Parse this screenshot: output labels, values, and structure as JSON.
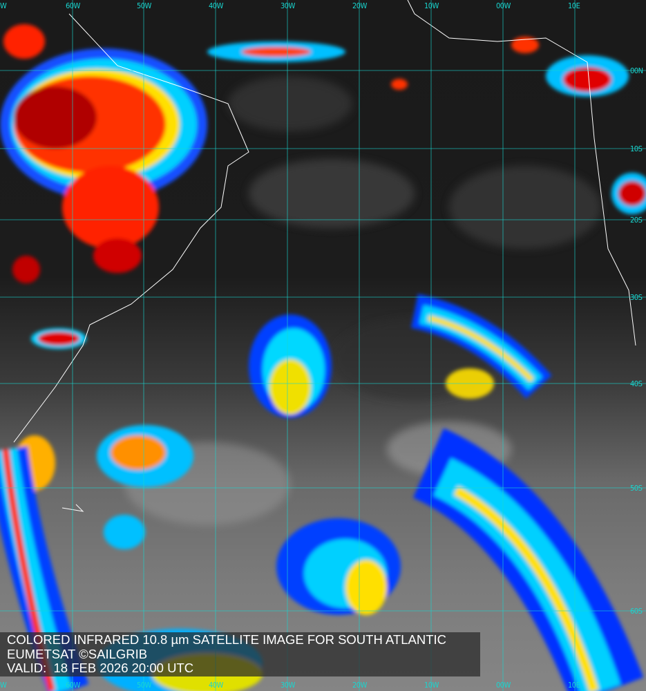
{
  "caption": {
    "title": "COLORED INFRARED 10.8 µm SATELLITE IMAGE FOR SOUTH ATLANTIC",
    "credit": "EUMETSAT ©SAILGRIB",
    "valid": "VALID:  18 FEB 2026 20:00 UTC"
  },
  "grid": {
    "longitude_labels": [
      "W",
      "60W",
      "50W",
      "40W",
      "30W",
      "20W",
      "10W",
      "00W",
      "10E"
    ],
    "latitude_labels": [
      "00N",
      "10S",
      "20S",
      "30S",
      "40S",
      "50S",
      "60S"
    ],
    "line_color": "#19d6d0"
  },
  "colors": {
    "cold_tops": "#c00000",
    "very_cold": "#ff3000",
    "mid": "#ffe000",
    "cool": "#00e0ff",
    "low": "#0030ff",
    "coastline": "#ffffff"
  }
}
